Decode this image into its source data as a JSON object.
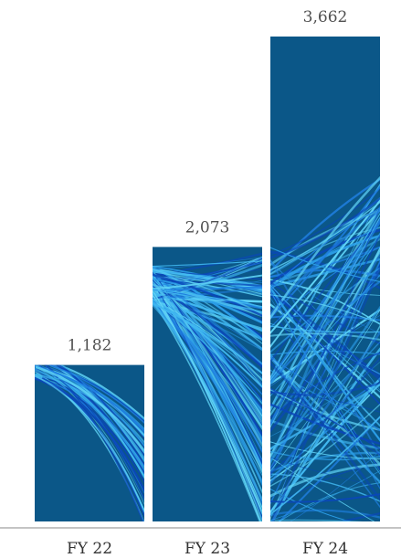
{
  "chart_data": {
    "type": "bar",
    "categories": [
      "FY 22",
      "FY 23",
      "FY 24"
    ],
    "values": [
      1182,
      2073,
      3662
    ],
    "value_labels": [
      "1,182",
      "2,073",
      "3,662"
    ],
    "title": "",
    "xlabel": "",
    "ylabel": "",
    "ylim": [
      0,
      3662
    ],
    "grid": false,
    "legend": "none",
    "colors": {
      "bar_fill": "#0b5788",
      "streak_light": "#5fd3f5",
      "streak_mid": "#2b9de6",
      "streak_dark": "#0a47b8",
      "axis_line": "#888888"
    }
  }
}
